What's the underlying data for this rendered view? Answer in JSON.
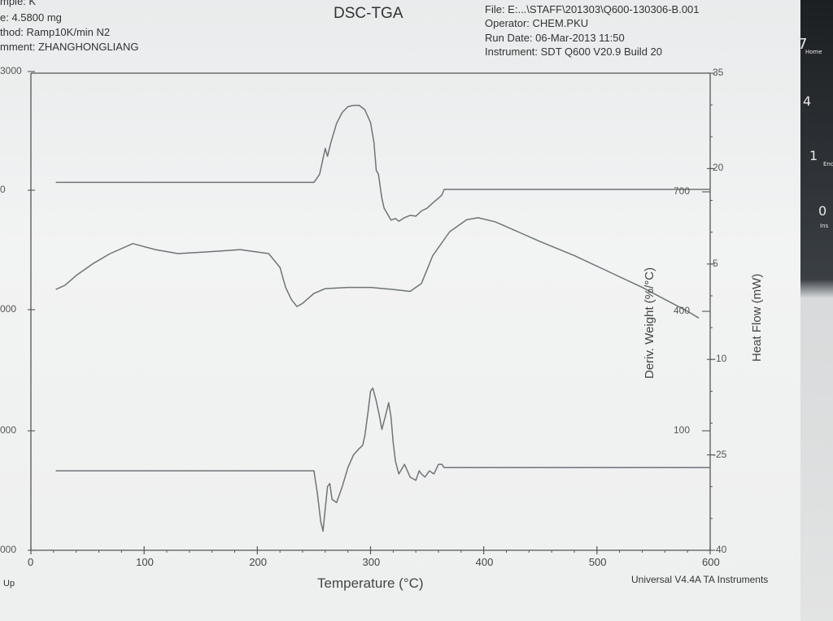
{
  "header": {
    "sample": "mple: K",
    "size": "e: 4.5800 mg",
    "method": "thod: Ramp10K/min  N2",
    "comment": "mment: ZHANGHONGLIANG",
    "file": "File: E:...\\STAFF\\201303\\Q600-130306-B.001",
    "operator": "Operator: CHEM.PKU",
    "run_date": "Run Date: 06-Mar-2013 11:50",
    "instrument": "Instrument: SDT Q600 V20.9 Build 20"
  },
  "footer": {
    "left": "Up",
    "right": "Universal V4.4A TA Instruments"
  },
  "keys": [
    "7",
    "Home",
    "4",
    "1",
    "End",
    "0",
    "Ins"
  ],
  "colors": {
    "trace": "#6f7478",
    "axis": "#555555",
    "paper": "#eeefef"
  },
  "chart_data": {
    "type": "line",
    "title": "DSC-TGA",
    "xlabel": "Temperature (°C)",
    "xlim": [
      0,
      600
    ],
    "x_ticks": [
      0,
      100,
      200,
      300,
      400,
      500,
      600
    ],
    "axes": {
      "left_ticks": [
        "3000",
        "0",
        "000",
        "000",
        "000"
      ],
      "right1": {
        "label": "Deriv. Weight (%/°C)",
        "ticks": [
          "700",
          "400",
          "100"
        ]
      },
      "right2": {
        "label": "Heat Flow (mW)",
        "ticks": [
          "35",
          "20",
          "5",
          "-10",
          "-25",
          "-40"
        ],
        "lim": [
          -40,
          35
        ]
      }
    },
    "series": [
      {
        "axis": "left",
        "x": [
          22,
          250,
          255,
          260,
          262,
          265,
          270,
          275,
          280,
          285,
          290,
          295,
          300,
          303,
          305,
          307,
          310,
          312,
          315,
          318,
          322,
          325,
          330,
          335,
          340,
          345,
          350,
          355,
          360,
          363,
          365,
          600
        ],
        "y": [
          195,
          195,
          400,
          1050,
          850,
          1200,
          1680,
          1950,
          2100,
          2130,
          2130,
          2020,
          1700,
          1200,
          500,
          400,
          -200,
          -450,
          -600,
          -750,
          -710,
          -780,
          -690,
          -630,
          -650,
          -520,
          -450,
          -320,
          -200,
          -120,
          20,
          20
        ]
      },
      {
        "axis": "right1",
        "x": [
          22,
          30,
          40,
          55,
          70,
          90,
          110,
          130,
          160,
          185,
          210,
          220,
          225,
          230,
          235,
          240,
          250,
          260,
          280,
          300,
          320,
          335,
          345,
          355,
          370,
          385,
          395,
          410,
          430,
          450,
          480,
          510,
          540,
          560,
          580,
          590
        ],
        "y": [
          455,
          465,
          490,
          520,
          545,
          570,
          555,
          545,
          550,
          555,
          545,
          510,
          460,
          430,
          412,
          420,
          445,
          457,
          460,
          460,
          455,
          450,
          470,
          540,
          600,
          630,
          635,
          625,
          600,
          575,
          540,
          500,
          460,
          430,
          400,
          383
        ]
      },
      {
        "axis": "right2",
        "x": [
          22,
          250,
          253,
          256,
          258,
          260,
          262,
          264,
          266,
          270,
          275,
          280,
          285,
          290,
          293,
          295,
          298,
          300,
          302,
          305,
          308,
          310,
          313,
          316,
          318,
          320,
          322,
          325,
          330,
          335,
          340,
          343,
          345,
          348,
          352,
          356,
          360,
          363,
          365,
          600
        ],
        "y": [
          -27.5,
          -27.5,
          -31,
          -35.5,
          -37,
          -33.5,
          -30,
          -29.5,
          -32,
          -32.5,
          -30,
          -27,
          -25,
          -24,
          -23.5,
          -22,
          -18,
          -15,
          -14.5,
          -16.5,
          -19,
          -21,
          -19,
          -16.8,
          -19,
          -23,
          -26,
          -28,
          -26.5,
          -28.5,
          -29,
          -27.5,
          -28,
          -28.5,
          -27.5,
          -28,
          -26.5,
          -26.5,
          -27,
          -27
        ]
      }
    ]
  }
}
